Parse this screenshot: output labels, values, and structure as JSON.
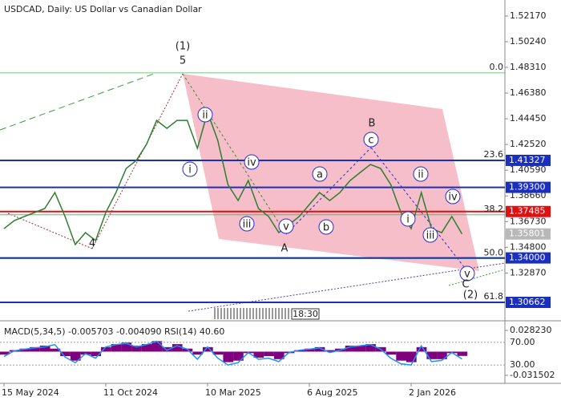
{
  "chart_data": {
    "type": "line",
    "title": "USDCAD, Daily:  US Dollar vs Canadian Dollar",
    "categories": [
      "15 May 2024",
      null,
      null,
      null,
      null,
      null,
      null,
      null,
      null,
      null,
      "11 Oct 2024",
      null,
      null,
      null,
      null,
      null,
      null,
      null,
      null,
      null,
      "10 Mar 2025",
      null,
      null,
      null,
      null,
      null,
      null,
      null,
      null,
      null,
      "6 Aug 2025",
      null,
      null,
      null,
      null,
      null,
      null,
      null,
      null,
      null,
      "2 Jan 2026",
      null,
      null,
      null,
      null,
      null
    ],
    "values": [
      1.362,
      1.368,
      1.3711,
      1.3741,
      1.3771,
      1.3891,
      1.3711,
      1.35,
      1.359,
      1.353,
      1.3741,
      1.3891,
      1.4072,
      1.4132,
      1.4253,
      1.4433,
      1.4373,
      1.4433,
      1.4433,
      1.4223,
      1.4494,
      1.4283,
      1.3951,
      1.3831,
      1.3981,
      1.3771,
      1.3711,
      1.359,
      1.365,
      1.3711,
      1.3801,
      1.3891,
      1.3831,
      1.3891,
      1.3981,
      1.4042,
      1.4102,
      1.4072,
      1.3951,
      1.3741,
      1.362,
      1.3891,
      1.362,
      1.359,
      1.3711,
      1.358
    ],
    "color": "#2e7d32",
    "ylim": [
      1.2988,
      1.5289
    ],
    "yticks": [
      {
        "value": 1.5217,
        "label": "1.52170"
      },
      {
        "value": 1.5024,
        "label": "1.50240"
      },
      {
        "value": 1.4831,
        "label": "1.48310"
      },
      {
        "value": 1.4638,
        "label": "1.46380"
      },
      {
        "value": 1.4445,
        "label": "1.44450"
      },
      {
        "value": 1.4252,
        "label": "1.42520"
      },
      {
        "value": 1.4059,
        "label": "1.40590"
      },
      {
        "value": 1.3866,
        "label": "1.38660"
      },
      {
        "value": 1.3673,
        "label": "1.36730"
      },
      {
        "value": 1.348,
        "label": "1.34800"
      },
      {
        "value": 1.3287,
        "label": "1.32870"
      }
    ],
    "levels": [
      {
        "value": 1.41327,
        "label": "1.41327",
        "color": "#1a2fc0"
      },
      {
        "value": 1.393,
        "label": "1.39300",
        "color": "#1a2fc0"
      },
      {
        "value": 1.37485,
        "label": "1.37485",
        "color": "#e01010"
      },
      {
        "value": 1.35801,
        "label": "1.35801",
        "color": "#b8b8b8"
      },
      {
        "value": 1.34,
        "label": "1.34000",
        "color": "#1a2fc0"
      },
      {
        "value": 1.30662,
        "label": "1.30662",
        "color": "#1a2fc0"
      }
    ],
    "fib": [
      {
        "value": 1.479,
        "label": "0.0"
      },
      {
        "value": 1.4132,
        "label": "23.6"
      },
      {
        "value": 1.3724,
        "label": "38.2"
      },
      {
        "value": 1.3395,
        "label": "50.0"
      },
      {
        "value": 1.3066,
        "label": "61.8"
      }
    ],
    "annotations": [
      {
        "text": "(1)",
        "color": "#3a8a3a"
      },
      {
        "text": "5",
        "color": "#a0302a"
      },
      {
        "text": "4",
        "color": "#a0302a"
      },
      {
        "text": "i",
        "color": "#2a2ad0"
      },
      {
        "text": "ii",
        "color": "#2a2ad0"
      },
      {
        "text": "iii",
        "color": "#2a2ad0"
      },
      {
        "text": "iv",
        "color": "#2a2ad0"
      },
      {
        "text": "v",
        "color": "#2a2ad0"
      },
      {
        "text": "A",
        "color": "#a0302a"
      },
      {
        "text": "a",
        "color": "#2a2ad0"
      },
      {
        "text": "b",
        "color": "#2a2ad0"
      },
      {
        "text": "c",
        "color": "#2a2ad0"
      },
      {
        "text": "B",
        "color": "#a0302a"
      },
      {
        "text": "i",
        "color": "#2a2ad0"
      },
      {
        "text": "ii",
        "color": "#2a2ad0"
      },
      {
        "text": "iii",
        "color": "#2a2ad0"
      },
      {
        "text": "iv",
        "color": "#2a2ad0"
      },
      {
        "text": "v",
        "color": "#2a2ad0"
      },
      {
        "text": "C",
        "color": "#a0302a"
      },
      {
        "text": "(2)",
        "color": "#3a8a3a"
      }
    ],
    "time_label": "18:30",
    "indicator": {
      "title": "MACD(5,34,5) -0.005703 -0.004090 RSI(14) 40.60",
      "macd": {
        "color": "#800080",
        "ylim": [
          -0.0358,
          0.0357
        ],
        "yticks": [
          {
            "value": 0.02823,
            "label": "0.028230"
          },
          {
            "value": -0.031502,
            "label": "-0.031502"
          }
        ],
        "values": [
          -0.004,
          0.002,
          0.004,
          0.006,
          0.008,
          0.004,
          -0.006,
          -0.012,
          -0.004,
          -0.006,
          0.006,
          0.01,
          0.012,
          0.008,
          0.01,
          0.014,
          0.006,
          0.01,
          0.004,
          -0.004,
          0.006,
          -0.004,
          -0.014,
          -0.012,
          -0.002,
          -0.008,
          -0.006,
          -0.01,
          -0.002,
          0.002,
          0.004,
          0.006,
          0.002,
          0.004,
          0.008,
          0.008,
          0.01,
          0.006,
          -0.004,
          -0.012,
          -0.014,
          0.006,
          -0.01,
          -0.01,
          -0.002,
          -0.005703
        ]
      },
      "rsi": {
        "color": "#1e90ff",
        "ylim": [
          6,
          101
        ],
        "yticks": [
          {
            "value": 70,
            "label": "70.00"
          },
          {
            "value": 30,
            "label": "30.00"
          }
        ],
        "values": [
          45,
          55,
          58,
          60,
          62,
          66,
          44,
          34,
          50,
          42,
          62,
          66,
          68,
          62,
          66,
          72,
          56,
          64,
          58,
          40,
          62,
          42,
          30,
          34,
          52,
          40,
          42,
          36,
          52,
          56,
          58,
          60,
          52,
          56,
          62,
          64,
          66,
          58,
          42,
          32,
          30,
          64,
          36,
          38,
          52,
          40.6
        ]
      }
    }
  }
}
